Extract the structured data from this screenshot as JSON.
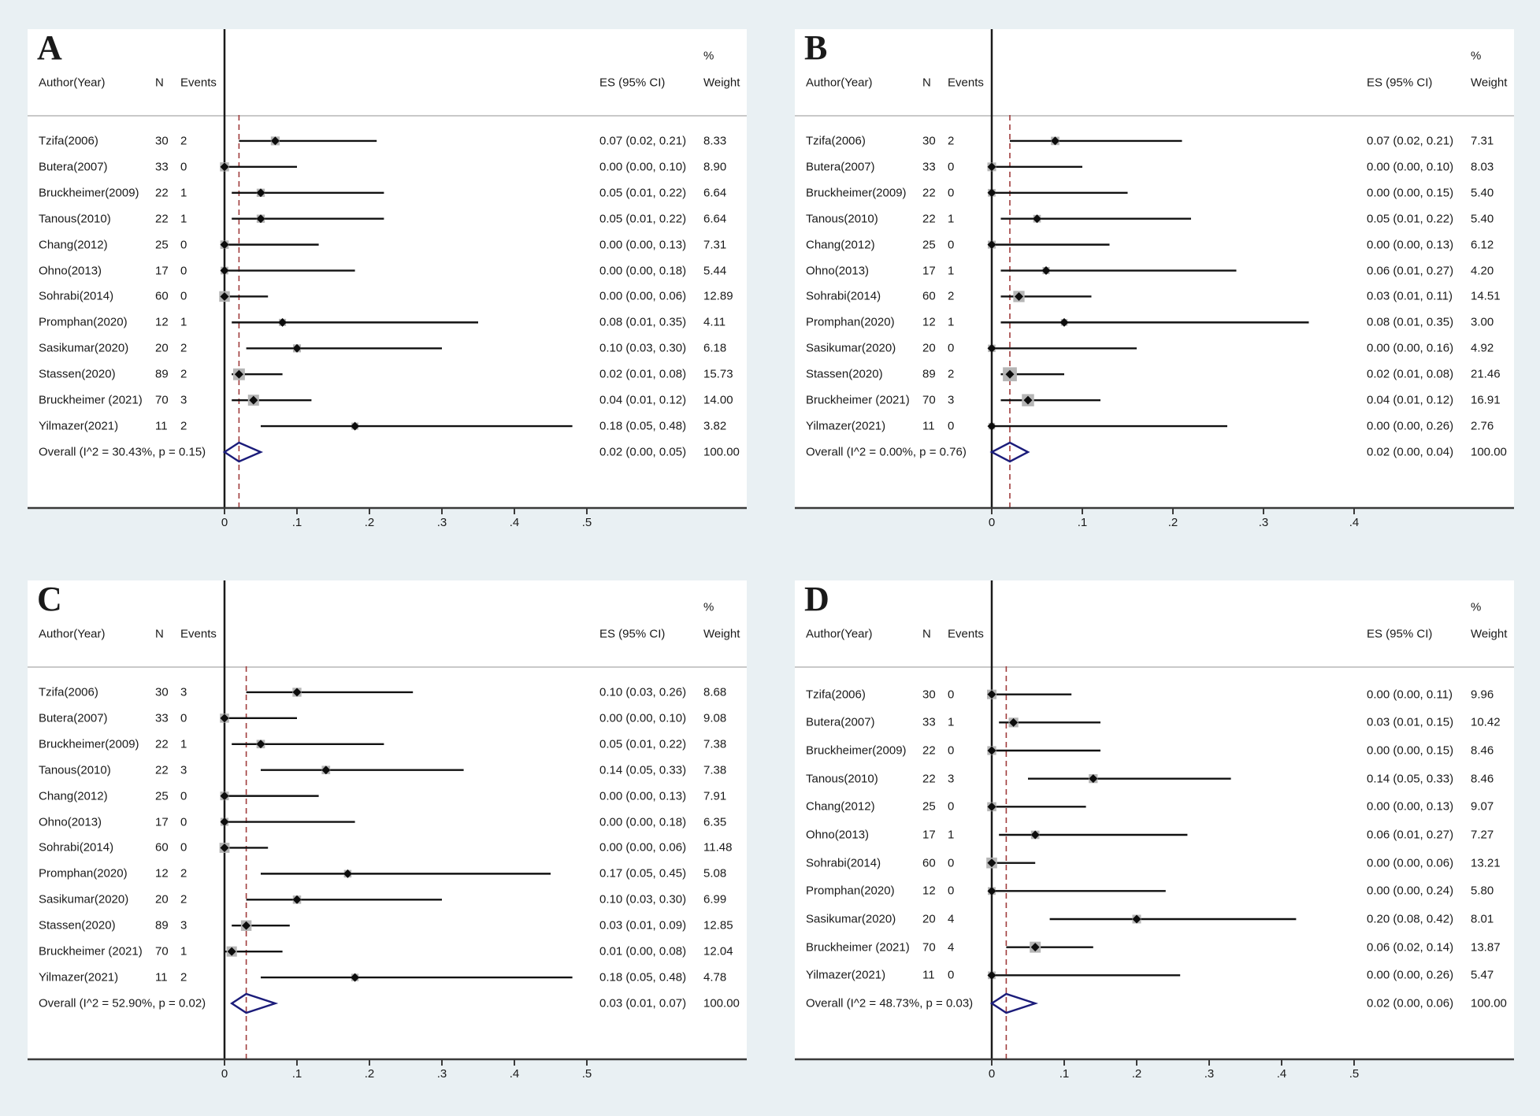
{
  "page": {
    "background": "#e9f0f3"
  },
  "colors": {
    "panel_bg": "#ffffff",
    "text": "#1a1a1a",
    "header_separator": "#c9c9c9",
    "axis_line": "#3a3a3a",
    "zero_line": "#1a1a1a",
    "ci_line": "#111111",
    "weight_square": "#b5b5b5",
    "point_marker": "#0d0d0d",
    "ref_line_dashed": "#a03c3c",
    "overall_diamond": "#1b1c7a"
  },
  "chart_data": {
    "type": "forest",
    "columns": {
      "author": "Author(Year)",
      "n": "N",
      "events": "Events",
      "es": "ES (95% CI)",
      "pct": "%",
      "weight": "Weight"
    },
    "panels": [
      {
        "label": "A",
        "axis": {
          "max": 0.5,
          "tick_values": [
            0,
            0.1,
            0.2,
            0.3,
            0.4,
            0.5
          ],
          "tick_labels": [
            "0",
            ".1",
            ".2",
            ".3",
            ".4",
            ".5"
          ],
          "grid": false
        },
        "overall": {
          "label": "Overall  (I^2 = 30.43%, p = 0.15)",
          "es": 0.02,
          "lo": 0.0,
          "hi": 0.05,
          "es_text": "0.02 (0.00, 0.05)",
          "weight": "100.00"
        },
        "ref_line": 0.02,
        "studies": [
          {
            "author": "Tzifa(2006)",
            "n": "30",
            "events": "2",
            "es": 0.07,
            "lo": 0.02,
            "hi": 0.21,
            "es_text": "0.07 (0.02, 0.21)",
            "weight": "8.33"
          },
          {
            "author": "Butera(2007)",
            "n": "33",
            "events": "0",
            "es": 0.0,
            "lo": 0.0,
            "hi": 0.1,
            "es_text": "0.00 (0.00, 0.10)",
            "weight": "8.90"
          },
          {
            "author": "Bruckheimer(2009)",
            "n": "22",
            "events": "1",
            "es": 0.05,
            "lo": 0.01,
            "hi": 0.22,
            "es_text": "0.05 (0.01, 0.22)",
            "weight": "6.64"
          },
          {
            "author": "Tanous(2010)",
            "n": "22",
            "events": "1",
            "es": 0.05,
            "lo": 0.01,
            "hi": 0.22,
            "es_text": "0.05 (0.01, 0.22)",
            "weight": "6.64"
          },
          {
            "author": "Chang(2012)",
            "n": "25",
            "events": "0",
            "es": 0.0,
            "lo": 0.0,
            "hi": 0.13,
            "es_text": "0.00 (0.00, 0.13)",
            "weight": "7.31"
          },
          {
            "author": "Ohno(2013)",
            "n": "17",
            "events": "0",
            "es": 0.0,
            "lo": 0.0,
            "hi": 0.18,
            "es_text": "0.00 (0.00, 0.18)",
            "weight": "5.44"
          },
          {
            "author": "Sohrabi(2014)",
            "n": "60",
            "events": "0",
            "es": 0.0,
            "lo": 0.0,
            "hi": 0.06,
            "es_text": "0.00 (0.00, 0.06)",
            "weight": "12.89"
          },
          {
            "author": "Promphan(2020)",
            "n": "12",
            "events": "1",
            "es": 0.08,
            "lo": 0.01,
            "hi": 0.35,
            "es_text": "0.08 (0.01, 0.35)",
            "weight": "4.11"
          },
          {
            "author": "Sasikumar(2020)",
            "n": "20",
            "events": "2",
            "es": 0.1,
            "lo": 0.03,
            "hi": 0.3,
            "es_text": "0.10 (0.03, 0.30)",
            "weight": "6.18"
          },
          {
            "author": "Stassen(2020)",
            "n": "89",
            "events": "2",
            "es": 0.02,
            "lo": 0.01,
            "hi": 0.08,
            "es_text": "0.02 (0.01, 0.08)",
            "weight": "15.73"
          },
          {
            "author": "Bruckheimer (2021)",
            "n": "70",
            "events": "3",
            "es": 0.04,
            "lo": 0.01,
            "hi": 0.12,
            "es_text": "0.04 (0.01, 0.12)",
            "weight": "14.00"
          },
          {
            "author": "Yilmazer(2021)",
            "n": "11",
            "events": "2",
            "es": 0.18,
            "lo": 0.05,
            "hi": 0.48,
            "es_text": "0.18 (0.05, 0.48)",
            "weight": "3.82"
          }
        ]
      },
      {
        "label": "B",
        "axis": {
          "max": 0.4,
          "tick_values": [
            0,
            0.1,
            0.2,
            0.3,
            0.4
          ],
          "tick_labels": [
            "0",
            ".1",
            ".2",
            ".3",
            ".4"
          ],
          "grid": false
        },
        "overall": {
          "label": "Overall  (I^2 = 0.00%, p = 0.76)",
          "es": 0.02,
          "lo": 0.0,
          "hi": 0.04,
          "es_text": "0.02 (0.00, 0.04)",
          "weight": "100.00"
        },
        "ref_line": 0.02,
        "studies": [
          {
            "author": "Tzifa(2006)",
            "n": "30",
            "events": "2",
            "es": 0.07,
            "lo": 0.02,
            "hi": 0.21,
            "es_text": "0.07 (0.02, 0.21)",
            "weight": "7.31"
          },
          {
            "author": "Butera(2007)",
            "n": "33",
            "events": "0",
            "es": 0.0,
            "lo": 0.0,
            "hi": 0.1,
            "es_text": "0.00 (0.00, 0.10)",
            "weight": "8.03"
          },
          {
            "author": "Bruckheimer(2009)",
            "n": "22",
            "events": "0",
            "es": 0.0,
            "lo": 0.0,
            "hi": 0.15,
            "es_text": "0.00 (0.00, 0.15)",
            "weight": "5.40"
          },
          {
            "author": "Tanous(2010)",
            "n": "22",
            "events": "1",
            "es": 0.05,
            "lo": 0.01,
            "hi": 0.22,
            "es_text": "0.05 (0.01, 0.22)",
            "weight": "5.40"
          },
          {
            "author": "Chang(2012)",
            "n": "25",
            "events": "0",
            "es": 0.0,
            "lo": 0.0,
            "hi": 0.13,
            "es_text": "0.00 (0.00, 0.13)",
            "weight": "6.12"
          },
          {
            "author": "Ohno(2013)",
            "n": "17",
            "events": "1",
            "es": 0.06,
            "lo": 0.01,
            "hi": 0.27,
            "es_text": "0.06 (0.01, 0.27)",
            "weight": "4.20"
          },
          {
            "author": "Sohrabi(2014)",
            "n": "60",
            "events": "2",
            "es": 0.03,
            "lo": 0.01,
            "hi": 0.11,
            "es_text": "0.03 (0.01, 0.11)",
            "weight": "14.51"
          },
          {
            "author": "Promphan(2020)",
            "n": "12",
            "events": "1",
            "es": 0.08,
            "lo": 0.01,
            "hi": 0.35,
            "es_text": "0.08 (0.01, 0.35)",
            "weight": "3.00"
          },
          {
            "author": "Sasikumar(2020)",
            "n": "20",
            "events": "0",
            "es": 0.0,
            "lo": 0.0,
            "hi": 0.16,
            "es_text": "0.00 (0.00, 0.16)",
            "weight": "4.92"
          },
          {
            "author": "Stassen(2020)",
            "n": "89",
            "events": "2",
            "es": 0.02,
            "lo": 0.01,
            "hi": 0.08,
            "es_text": "0.02 (0.01, 0.08)",
            "weight": "21.46"
          },
          {
            "author": "Bruckheimer (2021)",
            "n": "70",
            "events": "3",
            "es": 0.04,
            "lo": 0.01,
            "hi": 0.12,
            "es_text": "0.04 (0.01, 0.12)",
            "weight": "16.91"
          },
          {
            "author": "Yilmazer(2021)",
            "n": "11",
            "events": "0",
            "es": 0.0,
            "lo": 0.0,
            "hi": 0.26,
            "es_text": "0.00 (0.00, 0.26)",
            "weight": "2.76"
          }
        ]
      },
      {
        "label": "C",
        "axis": {
          "max": 0.5,
          "tick_values": [
            0,
            0.1,
            0.2,
            0.3,
            0.4,
            0.5
          ],
          "tick_labels": [
            "0",
            ".1",
            ".2",
            ".3",
            ".4",
            ".5"
          ],
          "grid": false
        },
        "overall": {
          "label": "Overall  (I^2 = 52.90%, p = 0.02)",
          "es": 0.03,
          "lo": 0.01,
          "hi": 0.07,
          "es_text": "0.03 (0.01, 0.07)",
          "weight": "100.00"
        },
        "ref_line": 0.03,
        "studies": [
          {
            "author": "Tzifa(2006)",
            "n": "30",
            "events": "3",
            "es": 0.1,
            "lo": 0.03,
            "hi": 0.26,
            "es_text": "0.10 (0.03, 0.26)",
            "weight": "8.68"
          },
          {
            "author": "Butera(2007)",
            "n": "33",
            "events": "0",
            "es": 0.0,
            "lo": 0.0,
            "hi": 0.1,
            "es_text": "0.00 (0.00, 0.10)",
            "weight": "9.08"
          },
          {
            "author": "Bruckheimer(2009)",
            "n": "22",
            "events": "1",
            "es": 0.05,
            "lo": 0.01,
            "hi": 0.22,
            "es_text": "0.05 (0.01, 0.22)",
            "weight": "7.38"
          },
          {
            "author": "Tanous(2010)",
            "n": "22",
            "events": "3",
            "es": 0.14,
            "lo": 0.05,
            "hi": 0.33,
            "es_text": "0.14 (0.05, 0.33)",
            "weight": "7.38"
          },
          {
            "author": "Chang(2012)",
            "n": "25",
            "events": "0",
            "es": 0.0,
            "lo": 0.0,
            "hi": 0.13,
            "es_text": "0.00 (0.00, 0.13)",
            "weight": "7.91"
          },
          {
            "author": "Ohno(2013)",
            "n": "17",
            "events": "0",
            "es": 0.0,
            "lo": 0.0,
            "hi": 0.18,
            "es_text": "0.00 (0.00, 0.18)",
            "weight": "6.35"
          },
          {
            "author": "Sohrabi(2014)",
            "n": "60",
            "events": "0",
            "es": 0.0,
            "lo": 0.0,
            "hi": 0.06,
            "es_text": "0.00 (0.00, 0.06)",
            "weight": "11.48"
          },
          {
            "author": "Promphan(2020)",
            "n": "12",
            "events": "2",
            "es": 0.17,
            "lo": 0.05,
            "hi": 0.45,
            "es_text": "0.17 (0.05, 0.45)",
            "weight": "5.08"
          },
          {
            "author": "Sasikumar(2020)",
            "n": "20",
            "events": "2",
            "es": 0.1,
            "lo": 0.03,
            "hi": 0.3,
            "es_text": "0.10 (0.03, 0.30)",
            "weight": "6.99"
          },
          {
            "author": "Stassen(2020)",
            "n": "89",
            "events": "3",
            "es": 0.03,
            "lo": 0.01,
            "hi": 0.09,
            "es_text": "0.03 (0.01, 0.09)",
            "weight": "12.85"
          },
          {
            "author": "Bruckheimer (2021)",
            "n": "70",
            "events": "1",
            "es": 0.01,
            "lo": 0.0,
            "hi": 0.08,
            "es_text": "0.01 (0.00, 0.08)",
            "weight": "12.04"
          },
          {
            "author": "Yilmazer(2021)",
            "n": "11",
            "events": "2",
            "es": 0.18,
            "lo": 0.05,
            "hi": 0.48,
            "es_text": "0.18 (0.05, 0.48)",
            "weight": "4.78"
          }
        ]
      },
      {
        "label": "D",
        "axis": {
          "max": 0.5,
          "tick_values": [
            0,
            0.1,
            0.2,
            0.3,
            0.4,
            0.5
          ],
          "tick_labels": [
            "0",
            ".1",
            ".2",
            ".3",
            ".4",
            ".5"
          ],
          "grid": false
        },
        "overall": {
          "label": "Overall  (I^2 = 48.73%, p = 0.03)",
          "es": 0.02,
          "lo": 0.0,
          "hi": 0.06,
          "es_text": "0.02 (0.00, 0.06)",
          "weight": "100.00"
        },
        "ref_line": 0.02,
        "studies": [
          {
            "author": "Tzifa(2006)",
            "n": "30",
            "events": "0",
            "es": 0.0,
            "lo": 0.0,
            "hi": 0.11,
            "es_text": "0.00 (0.00, 0.11)",
            "weight": "9.96"
          },
          {
            "author": "Butera(2007)",
            "n": "33",
            "events": "1",
            "es": 0.03,
            "lo": 0.01,
            "hi": 0.15,
            "es_text": "0.03 (0.01, 0.15)",
            "weight": "10.42"
          },
          {
            "author": "Bruckheimer(2009)",
            "n": "22",
            "events": "0",
            "es": 0.0,
            "lo": 0.0,
            "hi": 0.15,
            "es_text": "0.00 (0.00, 0.15)",
            "weight": "8.46"
          },
          {
            "author": "Tanous(2010)",
            "n": "22",
            "events": "3",
            "es": 0.14,
            "lo": 0.05,
            "hi": 0.33,
            "es_text": "0.14 (0.05, 0.33)",
            "weight": "8.46"
          },
          {
            "author": "Chang(2012)",
            "n": "25",
            "events": "0",
            "es": 0.0,
            "lo": 0.0,
            "hi": 0.13,
            "es_text": "0.00 (0.00, 0.13)",
            "weight": "9.07"
          },
          {
            "author": "Ohno(2013)",
            "n": "17",
            "events": "1",
            "es": 0.06,
            "lo": 0.01,
            "hi": 0.27,
            "es_text": "0.06 (0.01, 0.27)",
            "weight": "7.27"
          },
          {
            "author": "Sohrabi(2014)",
            "n": "60",
            "events": "0",
            "es": 0.0,
            "lo": 0.0,
            "hi": 0.06,
            "es_text": "0.00 (0.00, 0.06)",
            "weight": "13.21"
          },
          {
            "author": "Promphan(2020)",
            "n": "12",
            "events": "0",
            "es": 0.0,
            "lo": 0.0,
            "hi": 0.24,
            "es_text": "0.00 (0.00, 0.24)",
            "weight": "5.80"
          },
          {
            "author": "Sasikumar(2020)",
            "n": "20",
            "events": "4",
            "es": 0.2,
            "lo": 0.08,
            "hi": 0.42,
            "es_text": "0.20 (0.08, 0.42)",
            "weight": "8.01"
          },
          {
            "author": "Bruckheimer (2021)",
            "n": "70",
            "events": "4",
            "es": 0.06,
            "lo": 0.02,
            "hi": 0.14,
            "es_text": "0.06 (0.02, 0.14)",
            "weight": "13.87"
          },
          {
            "author": "Yilmazer(2021)",
            "n": "11",
            "events": "0",
            "es": 0.0,
            "lo": 0.0,
            "hi": 0.26,
            "es_text": "0.00 (0.00, 0.26)",
            "weight": "5.47"
          }
        ]
      }
    ]
  }
}
